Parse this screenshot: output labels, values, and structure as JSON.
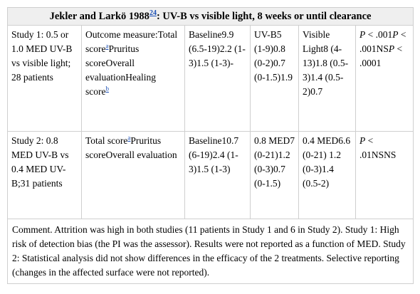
{
  "title": {
    "prefix": "Jekler and Larkö 1988",
    "ref": "24",
    "suffix": ": UV-B vs visible light, 8 weeks or until clearance"
  },
  "rows": [
    {
      "study": "Study 1: 0.5 or 1.0 MED UV-B vs visible light; 28 patients",
      "outcome_a": "Outcome measure:Total score",
      "outcome_sup1": "a",
      "outcome_b": "Pruritus scoreOverall evaluationHealing score",
      "outcome_sup2": "b",
      "baseline": "Baseline9.9 (6.5-19)2.2 (1-3)1.5 (1-3)-",
      "col4": "UV-B5 (1-9)0.8 (0-2)0.7 (0-1.5)1.9",
      "col5": "Visible Light8 (4-13)1.8 (0.5-3)1.4 (0.5-2)0.7",
      "p_values": [
        "P",
        " < .001",
        "P",
        " < .001NS",
        "P",
        " < .0001"
      ]
    },
    {
      "study": "Study 2: 0.8 MED UV-B vs 0.4 MED UV-B;31 patients",
      "outcome_a": "Total score",
      "outcome_sup1": "a",
      "outcome_b": "Pruritus scoreOverall evaluation",
      "baseline": "Baseline10.7 (6-19)2.4 (1-3)1.5 (1-3)",
      "col4": "0.8 MED7 (0-21)1.2 (0-3)0.7 (0-1.5)",
      "col5": "0.4 MED6.6 (0-21) 1.2 (0-3)1.4 (0.5-2)",
      "p_values": [
        "P",
        " < .01NSNS"
      ]
    }
  ],
  "comment": "Comment. Attrition was high in both studies (11 patients in Study 1 and 6 in Study 2). Study 1: High risk of detection bias (the PI was the assessor). Results were not reported as a function of MED. Study 2: Statistical analysis did not show differences in the efficacy of the 2 treatments. Selective reporting (changes in the affected surface were not reported)."
}
